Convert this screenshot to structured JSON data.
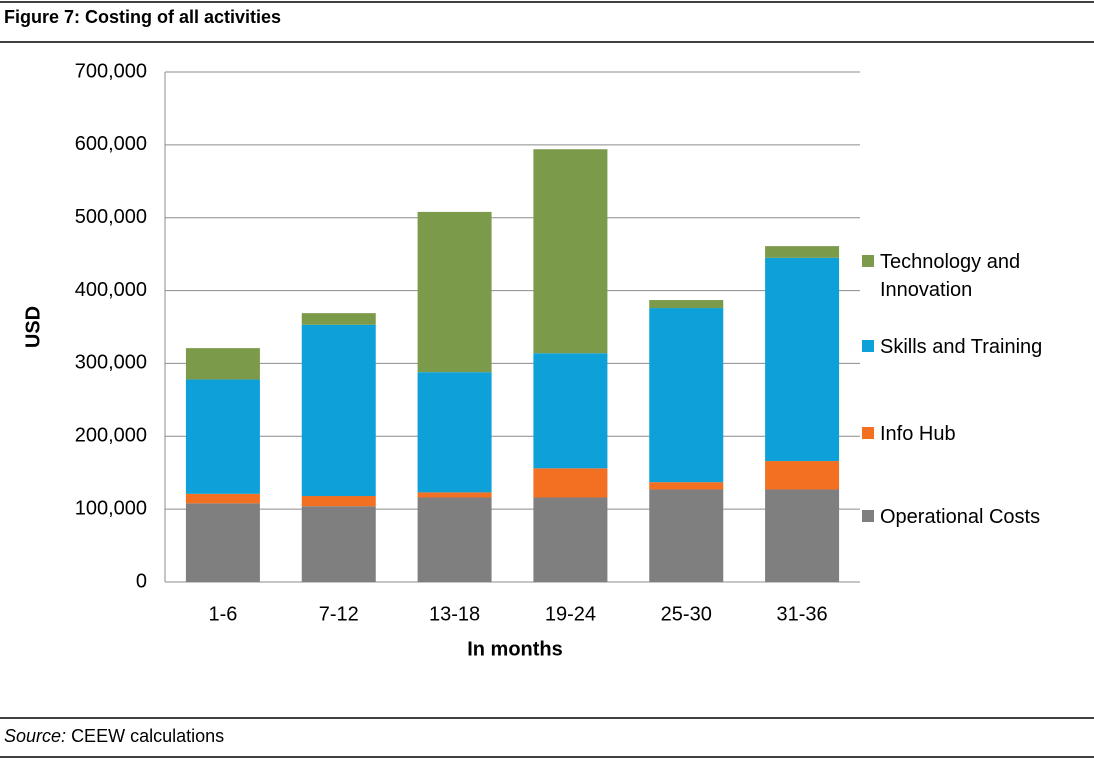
{
  "chart_data": {
    "type": "stacked_bar",
    "title": "Figure 7: Costing of all activities",
    "x_label": "In months",
    "y_label": "USD",
    "categories": [
      "1-6",
      "7-12",
      "13-18",
      "19-24",
      "25-30",
      "31-36"
    ],
    "series": [
      {
        "name": "Operational Costs",
        "color": "#7f7f7f",
        "values": [
          108000,
          104000,
          116000,
          116000,
          127000,
          127000
        ]
      },
      {
        "name": "Info Hub",
        "color": "#f36f21",
        "values": [
          13000,
          14000,
          7000,
          40000,
          10000,
          39000
        ]
      },
      {
        "name": "Skills and Training",
        "color": "#0ea0d8",
        "values": [
          157000,
          235000,
          165000,
          158000,
          239000,
          279000
        ]
      },
      {
        "name": "Technology and Innovation",
        "color": "#7b9a4a",
        "values": [
          43000,
          16000,
          220000,
          280000,
          11000,
          16000
        ]
      }
    ],
    "ylim": [
      0,
      700000
    ],
    "yticks": [
      0,
      {
        "value": 100000,
        "label": "100,000"
      },
      {
        "value": 200000,
        "label": "200,000"
      },
      {
        "value": 300000,
        "label": "300,000"
      },
      {
        "value": 400000,
        "label": "400,000"
      },
      {
        "value": 500000,
        "label": "500,000"
      },
      {
        "value": 600000,
        "label": "600,000"
      },
      {
        "value": 700000,
        "label": "700,000"
      }
    ],
    "grid": true,
    "legend": "right",
    "source": {
      "label": "Source:",
      "text": "CEEW calculations"
    }
  }
}
